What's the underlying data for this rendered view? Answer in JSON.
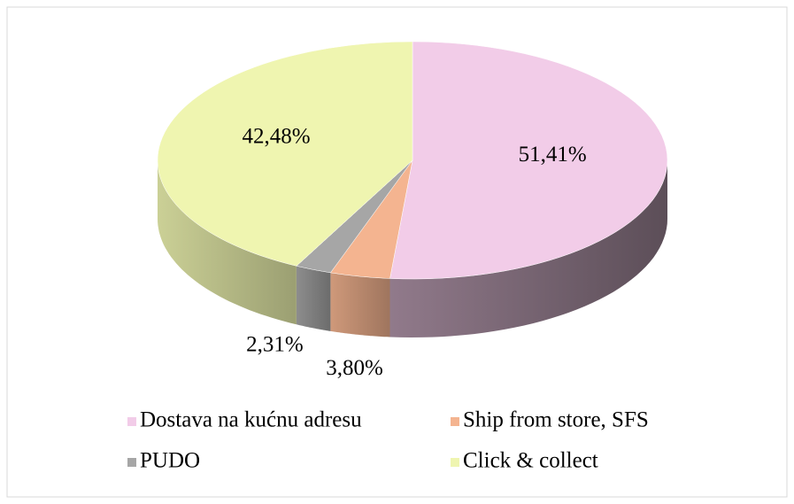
{
  "chart_data": {
    "type": "pie",
    "categories": [
      "Dostava na kućnu adresu",
      "Ship from store, SFS",
      "PUDO",
      "Click & collect"
    ],
    "values": [
      51.41,
      3.8,
      2.31,
      42.48
    ],
    "value_labels": [
      "51,41%",
      "3,80%",
      "2,31%",
      "42,48%"
    ],
    "colors": [
      "#f2cce8",
      "#f4b490",
      "#a6a6a6",
      "#eff5b0"
    ],
    "legend": "bottom"
  }
}
